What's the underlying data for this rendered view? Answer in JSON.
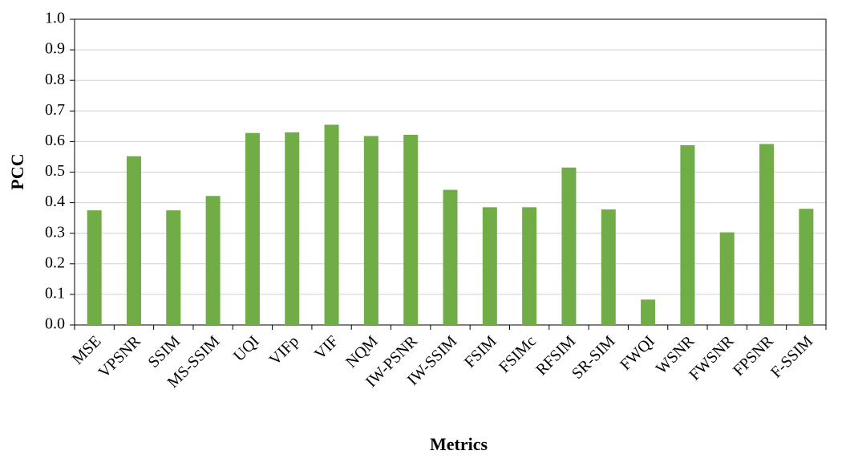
{
  "chart_data": {
    "type": "bar",
    "x_label": "Metrics",
    "y_label": "PCC",
    "categories": [
      "MSE",
      "VPSNR",
      "SSIM",
      "MS-SSIM",
      "UQI",
      "VIFp",
      "VIF",
      "NQM",
      "IW-PSNR",
      "IW-SSIM",
      "FSIM",
      "FSIMc",
      "RFSIM",
      "SR-SIM",
      "FWQI",
      "WSNR",
      "FWSNR",
      "FPSNR",
      "F-SSIM"
    ],
    "values": [
      0.375,
      0.552,
      0.375,
      0.422,
      0.628,
      0.63,
      0.655,
      0.618,
      0.622,
      0.442,
      0.385,
      0.385,
      0.515,
      0.378,
      0.083,
      0.588,
      0.303,
      0.592,
      0.38
    ],
    "color": "#70ad47",
    "ylim": [
      0,
      1
    ],
    "yticks": [
      {
        "value": 0,
        "label": "0.0"
      },
      0.1,
      0.2,
      0.3,
      0.4,
      0.5,
      0.6,
      0.7,
      0.8,
      0.9,
      {
        "value": 1,
        "label": "1.0"
      }
    ],
    "grid": true
  }
}
